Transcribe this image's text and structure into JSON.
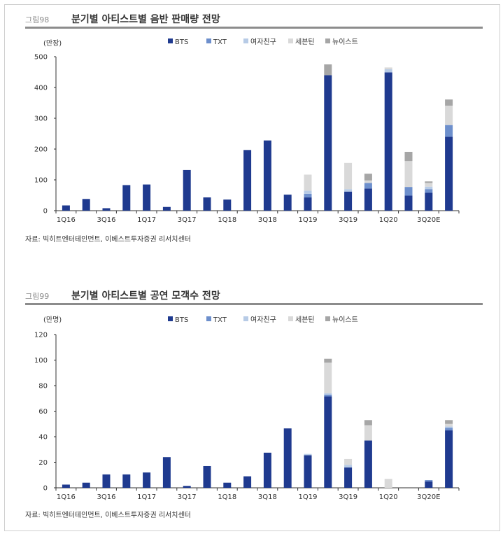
{
  "colors": {
    "BTS": "#1f3a8f",
    "TXT": "#6d8fcc",
    "GFRIEND": "#b7cbe6",
    "SEVENTEEN": "#d9d9d9",
    "NUEST": "#a6a6a6"
  },
  "charts": [
    {
      "fig_label": "그림98",
      "title": "분기별 아티스트별 음반 판매량 전망",
      "unit": "(만장)",
      "source": "자료: 빅히트엔터테인먼트, 이베스트투자증권 리서치센터",
      "chart_data": {
        "type": "bar",
        "stacked": true,
        "ylim": [
          0,
          500
        ],
        "yticks": [
          0,
          100,
          200,
          300,
          400,
          500
        ],
        "grid": false,
        "legend": "top",
        "categories": [
          "1Q16",
          "2Q16",
          "3Q16",
          "4Q16",
          "1Q17",
          "2Q17",
          "3Q17",
          "4Q17",
          "1Q18",
          "2Q18",
          "3Q18",
          "4Q18",
          "1Q19",
          "2Q19",
          "3Q19",
          "4Q19",
          "1Q20",
          "2Q20",
          "3Q20E",
          "4Q20E"
        ],
        "xticklabels": [
          "1Q16",
          "",
          "3Q16",
          "",
          "1Q17",
          "",
          "3Q17",
          "",
          "1Q18",
          "",
          "3Q18",
          "",
          "1Q19",
          "",
          "3Q19",
          "",
          "1Q20",
          "",
          "3Q20E",
          ""
        ],
        "series": [
          {
            "name": "BTS",
            "color_key": "BTS",
            "values": [
              17,
              38,
              8,
              83,
              85,
              12,
              132,
              43,
              36,
              197,
              228,
              52,
              43,
              440,
              62,
              72,
              449,
              49,
              58,
              240
            ]
          },
          {
            "name": "TXT",
            "color_key": "TXT",
            "values": [
              0,
              0,
              0,
              0,
              0,
              0,
              0,
              0,
              0,
              0,
              0,
              0,
              12,
              0,
              0,
              18,
              0,
              28,
              12,
              38
            ]
          },
          {
            "name": "여자친구",
            "color_key": "GFRIEND",
            "values": [
              0,
              0,
              0,
              0,
              0,
              0,
              0,
              0,
              0,
              0,
              0,
              0,
              10,
              0,
              8,
              0,
              10,
              0,
              8,
              0
            ]
          },
          {
            "name": "세븐틴",
            "color_key": "SEVENTEEN",
            "values": [
              0,
              0,
              0,
              0,
              0,
              0,
              0,
              0,
              0,
              0,
              0,
              0,
              52,
              0,
              85,
              8,
              6,
              84,
              12,
              63
            ]
          },
          {
            "name": "뉴이스트",
            "color_key": "NUEST",
            "values": [
              0,
              0,
              0,
              0,
              0,
              0,
              0,
              0,
              0,
              0,
              0,
              0,
              0,
              35,
              0,
              22,
              0,
              30,
              5,
              20
            ]
          }
        ]
      }
    },
    {
      "fig_label": "그림99",
      "title": "분기별 아티스트별 공연 모객수 전망",
      "unit": "(만명)",
      "source": "자료: 빅히트엔터테인먼트, 이베스트투자증권 리서치센터",
      "chart_data": {
        "type": "bar",
        "stacked": true,
        "ylim": [
          0,
          120
        ],
        "yticks": [
          0,
          20,
          40,
          60,
          80,
          100,
          120
        ],
        "grid": false,
        "legend": "top",
        "categories": [
          "1Q16",
          "2Q16",
          "3Q16",
          "4Q16",
          "1Q17",
          "2Q17",
          "3Q17",
          "4Q17",
          "1Q18",
          "2Q18",
          "3Q18",
          "4Q18",
          "1Q19",
          "2Q19",
          "3Q19",
          "4Q19",
          "1Q20",
          "2Q20",
          "3Q20E",
          "4Q20E"
        ],
        "xticklabels": [
          "1Q16",
          "",
          "3Q16",
          "",
          "1Q17",
          "",
          "3Q17",
          "",
          "1Q18",
          "",
          "3Q18",
          "",
          "1Q19",
          "",
          "3Q19",
          "",
          "1Q20",
          "",
          "3Q20E",
          ""
        ],
        "series": [
          {
            "name": "BTS",
            "color_key": "BTS",
            "values": [
              2.5,
              4,
              10.5,
              10.5,
              12,
              24,
              1.5,
              17,
              4,
              9,
              27.5,
              46.5,
              25.5,
              71.5,
              16,
              37,
              0,
              0,
              5,
              45
            ]
          },
          {
            "name": "TXT",
            "color_key": "TXT",
            "values": [
              0,
              0,
              0,
              0,
              0,
              0,
              0,
              0,
              0,
              0,
              0,
              0,
              0,
              1.5,
              0,
              0,
              0,
              0,
              1,
              2
            ]
          },
          {
            "name": "여자친구",
            "color_key": "GFRIEND",
            "values": [
              0,
              0,
              0,
              0,
              0,
              0,
              0,
              0,
              0,
              0,
              0,
              0,
              1,
              1,
              2,
              0,
              0,
              0,
              0,
              1
            ]
          },
          {
            "name": "세븐틴",
            "color_key": "SEVENTEEN",
            "values": [
              0,
              0,
              0,
              0,
              0,
              0,
              0,
              0,
              0,
              0,
              0,
              0,
              0,
              24,
              4.5,
              12,
              7,
              0,
              0,
              2
            ]
          },
          {
            "name": "뉴이스트",
            "color_key": "NUEST",
            "values": [
              0,
              0,
              0,
              0,
              0,
              0,
              0,
              0,
              0,
              0,
              0,
              0,
              0,
              3,
              0,
              4,
              0,
              0,
              0,
              3
            ]
          }
        ]
      }
    }
  ]
}
